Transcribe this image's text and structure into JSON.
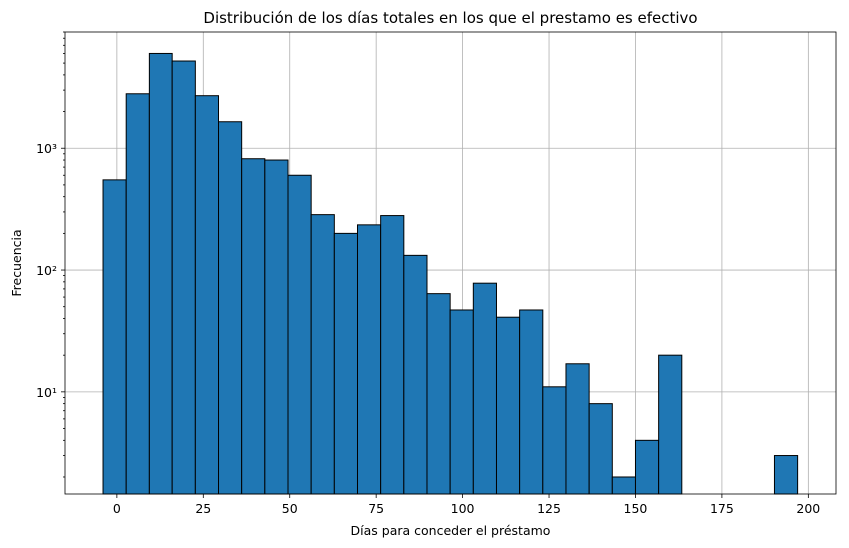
{
  "chart_data": {
    "type": "bar",
    "title": "Distribución de los días totales en los que el prestamo es efectivo",
    "xlabel": "Días para conceder el préstamo",
    "ylabel": "Frecuencia",
    "yscale": "log",
    "grid": true,
    "bar_color": "#1f77b4",
    "edge_color": "#000000",
    "xlim": [
      -15,
      208
    ],
    "ylim": [
      1.45,
      9000
    ],
    "xticks": [
      0,
      25,
      50,
      75,
      100,
      125,
      150,
      175,
      200
    ],
    "xtick_labels": [
      "0",
      "25",
      "50",
      "75",
      "100",
      "125",
      "150",
      "175",
      "200"
    ],
    "yticks": [
      10,
      100,
      1000
    ],
    "ytick_labels": [
      "10¹",
      "10²",
      "10³"
    ],
    "bins": [
      {
        "x0": -4.0,
        "x1": 2.7,
        "count": 550
      },
      {
        "x0": 2.7,
        "x1": 9.4,
        "count": 2800
      },
      {
        "x0": 9.4,
        "x1": 16.0,
        "count": 6000
      },
      {
        "x0": 16.0,
        "x1": 22.7,
        "count": 5200
      },
      {
        "x0": 22.7,
        "x1": 29.4,
        "count": 2700
      },
      {
        "x0": 29.4,
        "x1": 36.1,
        "count": 1650
      },
      {
        "x0": 36.1,
        "x1": 42.8,
        "count": 820
      },
      {
        "x0": 42.8,
        "x1": 49.5,
        "count": 800
      },
      {
        "x0": 49.5,
        "x1": 56.2,
        "count": 600
      },
      {
        "x0": 56.2,
        "x1": 62.9,
        "count": 285
      },
      {
        "x0": 62.9,
        "x1": 69.6,
        "count": 200
      },
      {
        "x0": 69.6,
        "x1": 76.3,
        "count": 235
      },
      {
        "x0": 76.3,
        "x1": 83.0,
        "count": 280
      },
      {
        "x0": 83.0,
        "x1": 89.7,
        "count": 132
      },
      {
        "x0": 89.7,
        "x1": 96.4,
        "count": 64
      },
      {
        "x0": 96.4,
        "x1": 103.1,
        "count": 47
      },
      {
        "x0": 103.1,
        "x1": 109.8,
        "count": 78
      },
      {
        "x0": 109.8,
        "x1": 116.5,
        "count": 41
      },
      {
        "x0": 116.5,
        "x1": 123.2,
        "count": 47
      },
      {
        "x0": 123.2,
        "x1": 129.9,
        "count": 11
      },
      {
        "x0": 129.9,
        "x1": 136.6,
        "count": 17
      },
      {
        "x0": 136.6,
        "x1": 143.3,
        "count": 8
      },
      {
        "x0": 143.3,
        "x1": 150.0,
        "count": 2
      },
      {
        "x0": 150.0,
        "x1": 156.7,
        "count": 4
      },
      {
        "x0": 156.7,
        "x1": 163.4,
        "count": 20
      },
      {
        "x0": 190.2,
        "x1": 196.9,
        "count": 3
      }
    ]
  }
}
